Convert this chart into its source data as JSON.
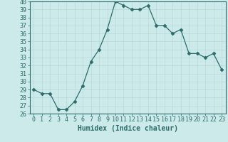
{
  "x": [
    0,
    1,
    2,
    3,
    4,
    5,
    6,
    7,
    8,
    9,
    10,
    11,
    12,
    13,
    14,
    15,
    16,
    17,
    18,
    19,
    20,
    21,
    22,
    23
  ],
  "y": [
    29,
    28.5,
    28.5,
    26.5,
    26.5,
    27.5,
    29.5,
    32.5,
    34,
    36.5,
    40,
    39.5,
    39,
    39,
    39.5,
    37,
    37,
    36,
    36.5,
    33.5,
    33.5,
    33,
    33.5,
    31.5
  ],
  "xlabel": "Humidex (Indice chaleur)",
  "ylabel": "",
  "ylim": [
    26,
    40
  ],
  "xlim_min": -0.5,
  "xlim_max": 23.5,
  "yticks": [
    26,
    27,
    28,
    29,
    30,
    31,
    32,
    33,
    34,
    35,
    36,
    37,
    38,
    39,
    40
  ],
  "xticks": [
    0,
    1,
    2,
    3,
    4,
    5,
    6,
    7,
    8,
    9,
    10,
    11,
    12,
    13,
    14,
    15,
    16,
    17,
    18,
    19,
    20,
    21,
    22,
    23
  ],
  "line_color": "#2d6b6b",
  "marker": "D",
  "marker_size": 2.5,
  "bg_color": "#cceaea",
  "grid_color": "#b8d8d8",
  "tick_label_fontsize": 6,
  "xlabel_fontsize": 7
}
